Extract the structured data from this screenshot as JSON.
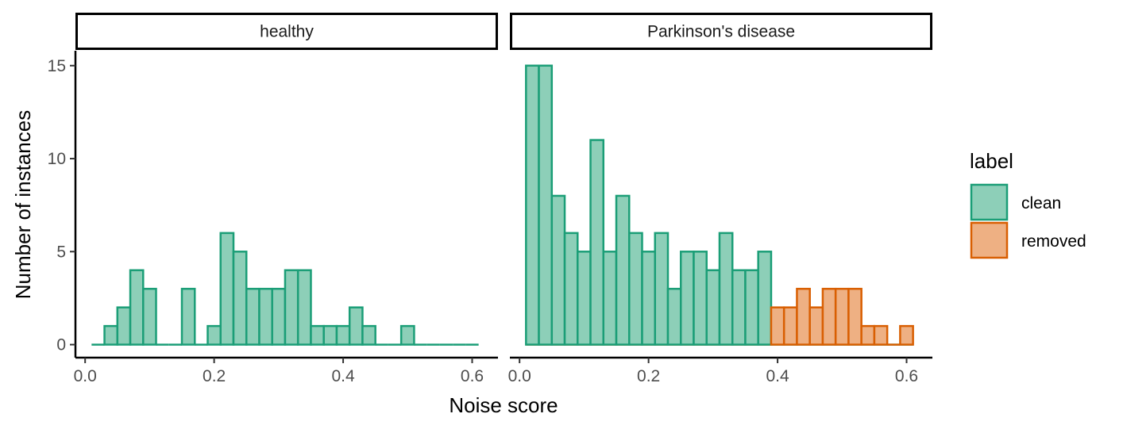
{
  "chart_data": {
    "type": "bar",
    "subtype": "faceted-histogram",
    "xlabel": "Noise score",
    "ylabel": "Number of instances",
    "xlim": [
      -0.015,
      0.64
    ],
    "ylim": [
      -0.7,
      15.8
    ],
    "x_ticks": [
      0.0,
      0.2,
      0.4,
      0.6
    ],
    "x_tick_labels": [
      "0.0",
      "0.2",
      "0.4",
      "0.6"
    ],
    "y_ticks": [
      0,
      5,
      10,
      15
    ],
    "y_tick_labels": [
      "0",
      "5",
      "10",
      "15"
    ],
    "bin_width": 0.02,
    "legend": {
      "title": "label",
      "placement": "right",
      "entries": [
        {
          "name": "clean",
          "fill": "#8dcfb8",
          "stroke": "#1b9e77"
        },
        {
          "name": "removed",
          "fill": "#eeb083",
          "stroke": "#d95f02"
        }
      ]
    },
    "panels": [
      {
        "strip": "healthy",
        "series": [
          {
            "name": "clean",
            "bin_starts": [
              0.01,
              0.03,
              0.05,
              0.07,
              0.09,
              0.11,
              0.13,
              0.15,
              0.17,
              0.19,
              0.21,
              0.23,
              0.25,
              0.27,
              0.29,
              0.31,
              0.33,
              0.35,
              0.37,
              0.39,
              0.41,
              0.43,
              0.45,
              0.47,
              0.49,
              0.51,
              0.53,
              0.55,
              0.57,
              0.59
            ],
            "values": [
              0,
              1,
              2,
              4,
              3,
              0,
              0,
              3,
              0,
              1,
              6,
              5,
              3,
              3,
              3,
              4,
              4,
              1,
              1,
              1,
              2,
              1,
              0,
              0,
              1,
              0,
              0,
              0,
              0,
              0
            ]
          }
        ]
      },
      {
        "strip": "Parkinson's disease",
        "series": [
          {
            "name": "clean",
            "bin_starts": [
              0.01,
              0.03,
              0.05,
              0.07,
              0.09,
              0.11,
              0.13,
              0.15,
              0.17,
              0.19,
              0.21,
              0.23,
              0.25,
              0.27,
              0.29,
              0.31,
              0.33,
              0.35,
              0.37,
              0.39,
              0.41,
              0.43,
              0.45,
              0.47,
              0.49,
              0.51,
              0.53,
              0.55,
              0.57,
              0.59
            ],
            "values": [
              15,
              15,
              8,
              6,
              5,
              11,
              5,
              8,
              6,
              5,
              6,
              3,
              5,
              5,
              4,
              6,
              4,
              4,
              5,
              0,
              0,
              0,
              0,
              0,
              0,
              0,
              0,
              0,
              0,
              0
            ]
          },
          {
            "name": "removed",
            "bin_starts": [
              0.01,
              0.03,
              0.05,
              0.07,
              0.09,
              0.11,
              0.13,
              0.15,
              0.17,
              0.19,
              0.21,
              0.23,
              0.25,
              0.27,
              0.29,
              0.31,
              0.33,
              0.35,
              0.37,
              0.39,
              0.41,
              0.43,
              0.45,
              0.47,
              0.49,
              0.51,
              0.53,
              0.55,
              0.57,
              0.59
            ],
            "values": [
              0,
              0,
              0,
              0,
              0,
              0,
              0,
              0,
              0,
              0,
              0,
              0,
              0,
              0,
              0,
              0,
              0,
              0,
              0,
              2,
              2,
              3,
              2,
              3,
              3,
              3,
              1,
              1,
              0,
              1
            ]
          }
        ]
      }
    ]
  }
}
